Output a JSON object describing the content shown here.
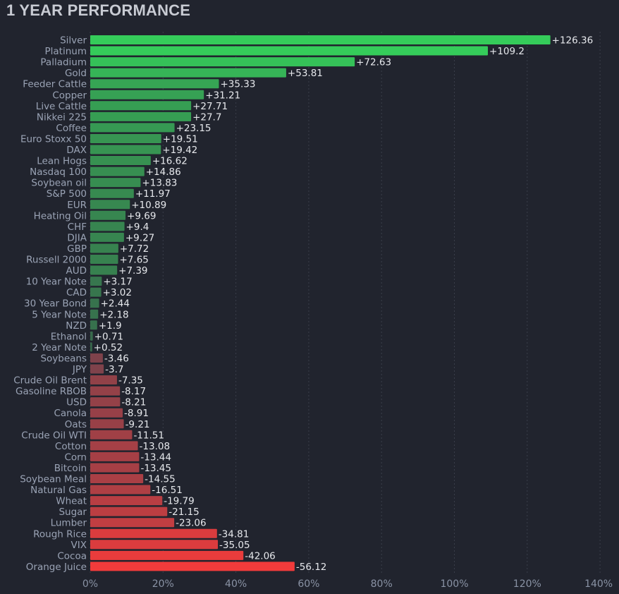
{
  "title": "1 YEAR PERFORMANCE",
  "colors": {
    "background": "#21242e",
    "positive_strong": "#35cc5a",
    "positive_weak": "#385e4a",
    "negative_weak": "#5a4450",
    "negative_strong": "#f23b3b"
  },
  "chart_data": {
    "type": "bar",
    "orientation": "horizontal",
    "title": "1 YEAR PERFORMANCE",
    "xlabel": "",
    "ylabel": "",
    "xlim": [
      0,
      140
    ],
    "x_ticks": [
      "0%",
      "20%",
      "40%",
      "60%",
      "80%",
      "100%",
      "120%",
      "140%"
    ],
    "grid": true,
    "bar_length": "absolute value",
    "categories": [
      "Silver",
      "Platinum",
      "Palladium",
      "Gold",
      "Feeder Cattle",
      "Copper",
      "Live Cattle",
      "Nikkei 225",
      "Coffee",
      "Euro Stoxx 50",
      "DAX",
      "Lean Hogs",
      "Nasdaq 100",
      "Soybean oil",
      "S&P 500",
      "EUR",
      "Heating Oil",
      "CHF",
      "DJIA",
      "GBP",
      "Russell 2000",
      "AUD",
      "10 Year Note",
      "CAD",
      "30 Year Bond",
      "5 Year Note",
      "NZD",
      "Ethanol",
      "2 Year Note",
      "Soybeans",
      "JPY",
      "Crude Oil Brent",
      "Gasoline RBOB",
      "USD",
      "Canola",
      "Oats",
      "Crude Oil WTI",
      "Cotton",
      "Corn",
      "Bitcoin",
      "Soybean Meal",
      "Natural Gas",
      "Wheat",
      "Sugar",
      "Lumber",
      "Rough Rice",
      "VIX",
      "Cocoa",
      "Orange Juice"
    ],
    "values": [
      126.36,
      109.2,
      72.63,
      53.81,
      35.33,
      31.21,
      27.71,
      27.7,
      23.15,
      19.51,
      19.42,
      16.62,
      14.86,
      13.83,
      11.97,
      10.89,
      9.69,
      9.4,
      9.27,
      7.72,
      7.65,
      7.39,
      3.17,
      3.02,
      2.44,
      2.18,
      1.9,
      0.71,
      0.52,
      -3.46,
      -3.7,
      -7.35,
      -8.17,
      -8.21,
      -8.91,
      -9.21,
      -11.51,
      -13.08,
      -13.44,
      -13.45,
      -14.55,
      -16.51,
      -19.79,
      -21.15,
      -23.06,
      -34.81,
      -35.05,
      -42.06,
      -56.12
    ],
    "value_labels": [
      "+126.36",
      "+109.2",
      "+72.63",
      "+53.81",
      "+35.33",
      "+31.21",
      "+27.71",
      "+27.7",
      "+23.15",
      "+19.51",
      "+19.42",
      "+16.62",
      "+14.86",
      "+13.83",
      "+11.97",
      "+10.89",
      "+9.69",
      "+9.4",
      "+9.27",
      "+7.72",
      "+7.65",
      "+7.39",
      "+3.17",
      "+3.02",
      "+2.44",
      "+2.18",
      "+1.9",
      "+0.71",
      "+0.52",
      "-3.46",
      "-3.7",
      "-7.35",
      "-8.17",
      "-8.21",
      "-8.91",
      "-9.21",
      "-11.51",
      "-13.08",
      "-13.44",
      "-13.45",
      "-14.55",
      "-16.51",
      "-19.79",
      "-21.15",
      "-23.06",
      "-34.81",
      "-35.05",
      "-42.06",
      "-56.12"
    ]
  }
}
